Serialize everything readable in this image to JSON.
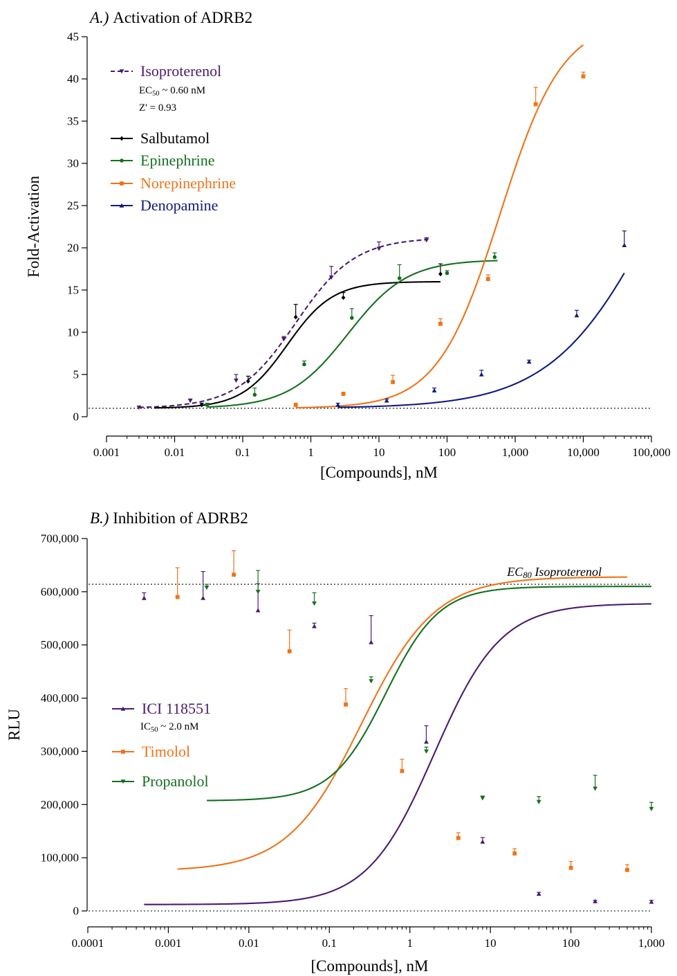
{
  "chart_data": [
    {
      "type": "scatter",
      "title_prefix": "A.)",
      "title": "Activation of ADRB2",
      "xlabel": "[Compounds], nM",
      "ylabel": "Fold-Activation",
      "x_scale": "log",
      "xlim": [
        0.001,
        100000
      ],
      "ylim": [
        0,
        45
      ],
      "x_ticks": [
        0.001,
        0.01,
        0.1,
        1,
        10,
        100,
        1000,
        10000,
        100000
      ],
      "x_tick_labels": [
        "0.001",
        "0.01",
        "0.1",
        "1",
        "10",
        "100",
        "1,000",
        "10,000",
        "100,000"
      ],
      "y_ticks": [
        0,
        5,
        10,
        15,
        20,
        25,
        30,
        35,
        40,
        45
      ],
      "y_tick_labels": [
        "0",
        "5",
        "10",
        "15",
        "20",
        "25",
        "30",
        "35",
        "40",
        "45"
      ],
      "baseline": 1,
      "legend_position": "top-left",
      "annotations": [
        {
          "parts": [
            "EC",
            "50",
            " ~ 0.60 nM"
          ]
        },
        {
          "parts": [
            "Z' = 0.93"
          ]
        }
      ],
      "series": [
        {
          "name": "Isoproterenol",
          "color": "#4b1a70",
          "marker": "triangle-down",
          "dashed": true,
          "curve": {
            "bottom": 1.0,
            "top": 21.2,
            "ec50": 0.6,
            "hill": 1.0,
            "xmin": 0.003,
            "xmax": 50
          },
          "x": [
            0.003,
            0.017,
            0.08,
            0.4,
            2,
            10,
            50
          ],
          "y": [
            1.1,
            1.9,
            4.3,
            9.2,
            16.5,
            19.9,
            20.9
          ],
          "err": [
            0.15,
            0.2,
            0.7,
            0.3,
            1.3,
            0.8,
            0.3
          ]
        },
        {
          "name": "Salbutamol",
          "color": "#000000",
          "marker": "diamond",
          "dashed": false,
          "curve": {
            "bottom": 1.0,
            "top": 16.0,
            "ec50": 0.45,
            "hill": 1.3,
            "xmin": 0.005,
            "xmax": 80
          },
          "x": [
            0.025,
            0.12,
            0.6,
            3,
            80
          ],
          "y": [
            1.4,
            4.2,
            11.8,
            14.1,
            16.9
          ],
          "err": [
            0.2,
            0.6,
            1.5,
            0.6,
            1.2
          ]
        },
        {
          "name": "Epinephrine",
          "color": "#12701e",
          "marker": "circle",
          "dashed": false,
          "curve": {
            "bottom": 1.0,
            "top": 18.6,
            "ec50": 3.5,
            "hill": 1.0,
            "xmin": 0.03,
            "xmax": 550
          },
          "x": [
            0.03,
            0.15,
            0.8,
            4,
            20,
            100,
            500
          ],
          "y": [
            1.4,
            2.6,
            6.2,
            11.7,
            16.4,
            17.0,
            18.9
          ],
          "err": [
            0.2,
            0.8,
            0.4,
            1.1,
            1.6,
            0.3,
            0.5
          ]
        },
        {
          "name": "Norepinephrine",
          "color": "#f07219",
          "marker": "square",
          "dashed": false,
          "curve": {
            "bottom": 1.0,
            "top": 47.0,
            "ec50": 600,
            "hill": 0.95,
            "xmin": 0.6,
            "xmax": 10000
          },
          "x": [
            0.6,
            3,
            16,
            80,
            400,
            2000,
            10000
          ],
          "y": [
            1.4,
            2.7,
            4.1,
            11.0,
            16.3,
            37.0,
            40.3
          ],
          "err": [
            0.2,
            0.2,
            0.8,
            0.6,
            0.5,
            2.0,
            0.5
          ]
        },
        {
          "name": "Denopamine",
          "color": "#0f1a7d",
          "marker": "triangle-up",
          "dashed": false,
          "curve": {
            "bottom": 1.0,
            "top": 48.0,
            "ec50": 130000,
            "hill": 0.56,
            "xmin": 2.5,
            "xmax": 40000
          },
          "x": [
            2.5,
            13,
            65,
            320,
            1600,
            8000,
            40000
          ],
          "y": [
            1.4,
            1.9,
            3.1,
            5.0,
            6.5,
            12.0,
            20.3
          ],
          "err": [
            0.2,
            0.2,
            0.3,
            0.5,
            0.2,
            0.6,
            1.7
          ]
        }
      ]
    },
    {
      "type": "scatter",
      "title_prefix": "B.)",
      "title": "Inhibition of ADRB2",
      "xlabel": "[Compounds], nM",
      "ylabel": "RLU",
      "x_scale": "log",
      "xlim": [
        0.0001,
        1000
      ],
      "ylim": [
        0,
        700000
      ],
      "x_ticks": [
        0.0001,
        0.001,
        0.01,
        0.1,
        1,
        10,
        100,
        1000
      ],
      "x_tick_labels": [
        "0.0001",
        "0.001",
        "0.01",
        "0.1",
        "1",
        "10",
        "100",
        "1,000"
      ],
      "y_ticks": [
        0,
        100000,
        200000,
        300000,
        400000,
        500000,
        600000,
        700000
      ],
      "y_tick_labels": [
        "0",
        "100,000",
        "200,000",
        "300,000",
        "400,000",
        "500,000",
        "600,000",
        "700,000"
      ],
      "baseline": 0,
      "reference_line": {
        "y": 614000,
        "label_main": "EC",
        "label_sub": "80",
        "label_rest": " Isoproterenol"
      },
      "legend_position": "center-left",
      "annotations": [
        {
          "parts": [
            "IC",
            "50",
            " ~ 2.0 nM"
          ]
        }
      ],
      "series": [
        {
          "name": "ICI 118551",
          "color": "#4b1a70",
          "marker": "triangle-up",
          "dashed": false,
          "curve": {
            "bottom": 12000,
            "top": 578000,
            "ec50": 2.0,
            "hill": 1.05,
            "xmin": 0.0005,
            "xmax": 1000
          },
          "x": [
            0.0005,
            0.0027,
            0.013,
            0.065,
            0.33,
            1.6,
            8,
            40,
            200,
            1000
          ],
          "y": [
            588000,
            588000,
            565000,
            535000,
            505000,
            318000,
            130000,
            32000,
            18000,
            17000
          ],
          "err": [
            10000,
            50000,
            50000,
            6000,
            50000,
            30000,
            8000,
            3000,
            2000,
            3000
          ]
        },
        {
          "name": "Timolol",
          "color": "#f07219",
          "marker": "square",
          "dashed": false,
          "curve": {
            "bottom": 75000,
            "top": 628000,
            "ec50": 0.25,
            "hill": 0.95,
            "xmin": 0.0013,
            "xmax": 500
          },
          "x": [
            0.0013,
            0.0065,
            0.032,
            0.16,
            0.8,
            4,
            20,
            100,
            500
          ],
          "y": [
            590000,
            632000,
            488000,
            388000,
            263000,
            137000,
            108000,
            81000,
            77000
          ],
          "err": [
            55000,
            45000,
            40000,
            30000,
            22000,
            10000,
            9000,
            12000,
            10000
          ]
        },
        {
          "name": "Propanolol",
          "color": "#12701e",
          "marker": "triangle-down",
          "dashed": false,
          "curve": {
            "bottom": 207000,
            "top": 610000,
            "ec50": 0.5,
            "hill": 1.3,
            "xmin": 0.003,
            "xmax": 1000
          },
          "x": [
            0.003,
            0.013,
            0.065,
            0.33,
            1.6,
            8,
            40,
            200,
            1000
          ],
          "y": [
            608000,
            600000,
            578000,
            432000,
            300000,
            212000,
            205000,
            230000,
            192000
          ],
          "err": [
            6000,
            40000,
            20000,
            8000,
            8000,
            4000,
            10000,
            25000,
            12000
          ]
        }
      ]
    }
  ]
}
